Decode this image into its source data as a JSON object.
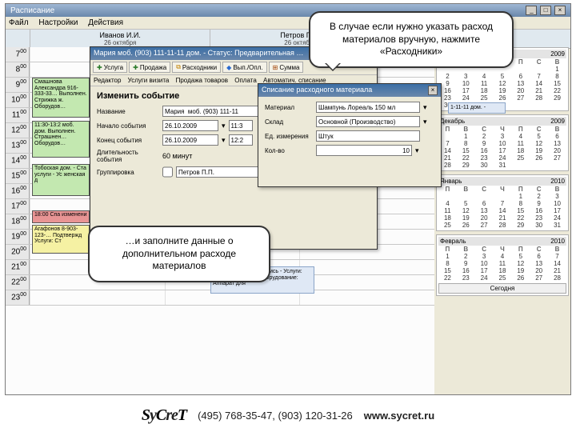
{
  "window": {
    "title": "Расписание",
    "min": "_",
    "max": "□",
    "close": "×"
  },
  "menu": {
    "file": "Файл",
    "settings": "Настройки",
    "actions": "Действия"
  },
  "staff": [
    {
      "name": "Иванов И.И.",
      "date": "26 октября"
    },
    {
      "name": "Петров П.П.",
      "date": "26 октября"
    }
  ],
  "hours": [
    "7",
    "8",
    "9",
    "10",
    "11",
    "12",
    "13",
    "14",
    "15",
    "16",
    "17",
    "18",
    "19",
    "20",
    "21",
    "22",
    "23"
  ],
  "appts": {
    "a1": "Смашнова Александра 916-333-33… Выполнен. Стрижка ж. Оборудов…",
    "a2": "11:30-13:2 моб. дом. Выполнен. Страшнен… Оборудов…",
    "a3": "Тобоская дом. - Ста услуги - Ус женская д",
    "a4": "18:00 Спа изменени",
    "a5": "Агафонов 8-903-123-… Подтвержд Услуги: Ст",
    "a6": "Предварительная запись - Услуги: Косметология 1 - Оборудование: Аппарат для"
  },
  "calendars": [
    {
      "month": "Ноябрь",
      "year": "2009",
      "startDow": 6,
      "days": 30
    },
    {
      "month": "Декабрь",
      "year": "2009",
      "startDow": 1,
      "days": 31
    },
    {
      "month": "Январь",
      "year": "2010",
      "startDow": 4,
      "days": 31
    },
    {
      "month": "Февраль",
      "year": "2010",
      "startDow": 0,
      "days": 28
    }
  ],
  "today_btn": "Сегодня",
  "dow": [
    "П",
    "В",
    "С",
    "Ч",
    "П",
    "С",
    "В"
  ],
  "dlg_edit": {
    "title": "Мария моб. (903) 111-11-11 дом. - Статус: Предварительная …",
    "tb": {
      "usluga": "Услуга",
      "prodazha": "Продажа",
      "rashodniki": "Расходники",
      "vyp": "Вып./Опл.",
      "summa": "Сумма"
    },
    "tabs": {
      "t1": "Редактор",
      "t2": "Услуги визита",
      "t3": "Продажа товаров",
      "t4": "Оплата",
      "t5": "Автоматич. списание"
    },
    "heading": "Изменить событие",
    "f": {
      "name_l": "Название",
      "name_v": "Мария  моб. (903) 111-11",
      "start_l": "Начало события",
      "start_d": "26.10.2009",
      "start_t": "11:3",
      "end_l": "Конец события",
      "end_d": "26.10.2009",
      "end_t": "12:2",
      "dur_l": "Длительность события",
      "dur_v": "60 минут",
      "grp_l": "Группировка",
      "grp_v": "Петров П.П."
    }
  },
  "dlg_mat": {
    "title": "Списание расходного материала",
    "f": {
      "mat_l": "Материал",
      "mat_v": "Шампунь Лореаль 150 мл",
      "sklad_l": "Склад",
      "sklad_v": "Основной (Производство)",
      "ed_l": "Ед. измерения",
      "ed_v": "Штук",
      "kol_l": "Кол-во",
      "kol_v": "10"
    },
    "extra": "1-11-11 дом. -"
  },
  "callout1": "В случае если нужно указать расход материалов вручную, нажмите «Расходники»",
  "callout2": "…и заполните данные о дополнительном расходе материалов",
  "footer": {
    "logo": "SyCreT",
    "phones": "(495) 768-35-47, (903) 120-31-26",
    "url": "www.sycret.ru"
  }
}
